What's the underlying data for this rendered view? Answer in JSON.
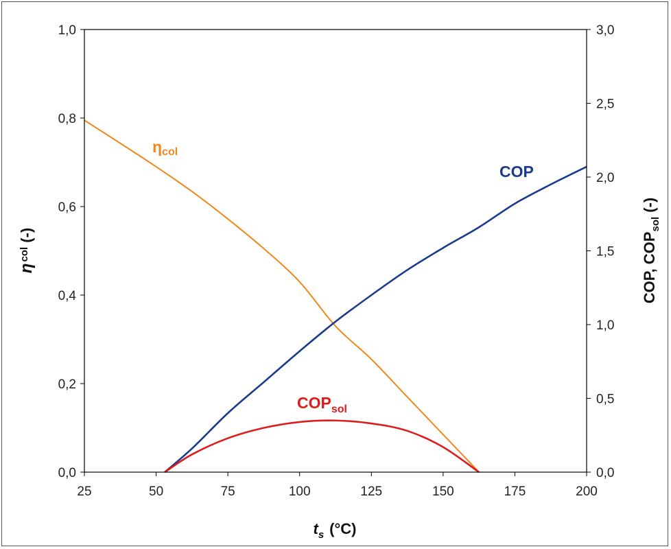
{
  "chart_data": {
    "type": "line",
    "x_axis": {
      "label_main": "t",
      "label_sub": "s",
      "label_unit": "(°C)",
      "lim": [
        25,
        200
      ],
      "ticks": [
        25,
        50,
        75,
        100,
        125,
        150,
        175,
        200
      ],
      "tick_labels": [
        "25",
        "50",
        "75",
        "100",
        "125",
        "150",
        "175",
        "200"
      ]
    },
    "y_left": {
      "label_main": "η",
      "label_sub": "col",
      "label_unit": " (-)",
      "lim": [
        0,
        1.0
      ],
      "ticks": [
        0,
        0.2,
        0.4,
        0.6,
        0.8,
        1.0
      ],
      "tick_labels": [
        "0,0",
        "0,2",
        "0,4",
        "0,6",
        "0,8",
        "1,0"
      ]
    },
    "y_right": {
      "label_part1": "COP, COP",
      "label_sub": "sol",
      "label_unit": " (-)",
      "lim": [
        0,
        3.0
      ],
      "ticks": [
        0,
        0.5,
        1.0,
        1.5,
        2.0,
        2.5,
        3.0
      ],
      "tick_labels": [
        "0,0",
        "0,5",
        "1,0",
        "1,5",
        "2,0",
        "2,5",
        "3,0"
      ]
    },
    "series": [
      {
        "name": "ηcol",
        "label_main": "η",
        "label_sub": "col",
        "axis": "left",
        "color": "#f0871e",
        "x": [
          25,
          37.5,
          50,
          62.5,
          75,
          87.5,
          100,
          112.5,
          125,
          137.5,
          150,
          162.5
        ],
        "y": [
          0.795,
          0.743,
          0.69,
          0.634,
          0.572,
          0.505,
          0.43,
          0.33,
          0.255,
          0.17,
          0.085,
          0.0
        ]
      },
      {
        "name": "COP",
        "label_main": "COP",
        "label_sub": "",
        "axis": "right",
        "color": "#1a3a8c",
        "x": [
          53,
          62.5,
          75,
          87.5,
          100,
          112.5,
          125,
          137.5,
          150,
          162.5,
          175,
          187.5,
          200
        ],
        "y": [
          0.0,
          0.16,
          0.4,
          0.61,
          0.82,
          1.02,
          1.2,
          1.37,
          1.52,
          1.66,
          1.82,
          1.95,
          2.07
        ]
      },
      {
        "name": "COPsol",
        "label_main": "COP",
        "label_sub": "sol",
        "axis": "right",
        "color": "#dd1c1c",
        "x": [
          53,
          62.5,
          75,
          87.5,
          100,
          112.5,
          125,
          137.5,
          150,
          162.5
        ],
        "y": [
          0.0,
          0.12,
          0.23,
          0.3,
          0.34,
          0.35,
          0.33,
          0.28,
          0.17,
          0.0
        ]
      }
    ]
  }
}
